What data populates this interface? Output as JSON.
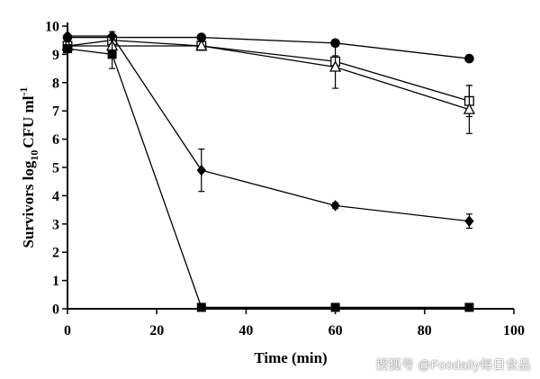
{
  "chart_data": {
    "type": "line",
    "title": "",
    "xlabel": "Time (min)",
    "ylabel_main": "Survivors log",
    "ylabel_sub": "10",
    "ylabel_unit": "CFU ml",
    "ylabel_sup": "-1",
    "xlim": [
      0,
      100
    ],
    "ylim": [
      0,
      10
    ],
    "xticks": [
      0,
      20,
      40,
      60,
      80,
      100
    ],
    "yticks": [
      0,
      1,
      2,
      3,
      4,
      5,
      6,
      7,
      8,
      9,
      10
    ],
    "grid": false,
    "legend": "none",
    "series": [
      {
        "marker": "filled-circle",
        "x": [
          0,
          10,
          30,
          60,
          90
        ],
        "y": [
          9.6,
          9.6,
          9.6,
          9.4,
          8.85
        ],
        "err": [
          0,
          0,
          0,
          0,
          0
        ]
      },
      {
        "marker": "open-square",
        "x": [
          0,
          10,
          30,
          60,
          90
        ],
        "y": [
          9.3,
          9.5,
          9.3,
          8.75,
          7.35
        ],
        "err": [
          0,
          0,
          0,
          0.2,
          0.55
        ]
      },
      {
        "marker": "open-triangle",
        "x": [
          0,
          10,
          30,
          60,
          90
        ],
        "y": [
          9.3,
          9.3,
          9.3,
          8.55,
          7.05
        ],
        "err": [
          0,
          0,
          0,
          0.75,
          0.85
        ]
      },
      {
        "marker": "filled-diamond",
        "x": [
          0,
          10,
          30,
          60,
          90
        ],
        "y": [
          9.65,
          9.65,
          4.9,
          3.65,
          3.1
        ],
        "err": [
          0,
          0.15,
          0.75,
          0.1,
          0.25
        ]
      },
      {
        "marker": "filled-square",
        "x": [
          0,
          10,
          30,
          60,
          90
        ],
        "y": [
          9.2,
          9.0,
          0.05,
          0.05,
          0.05
        ],
        "err": [
          0,
          0.5,
          0,
          0,
          0
        ]
      }
    ]
  },
  "watermark": "@Foodaily每日食品",
  "watermark_logo_text": "搜狐号"
}
